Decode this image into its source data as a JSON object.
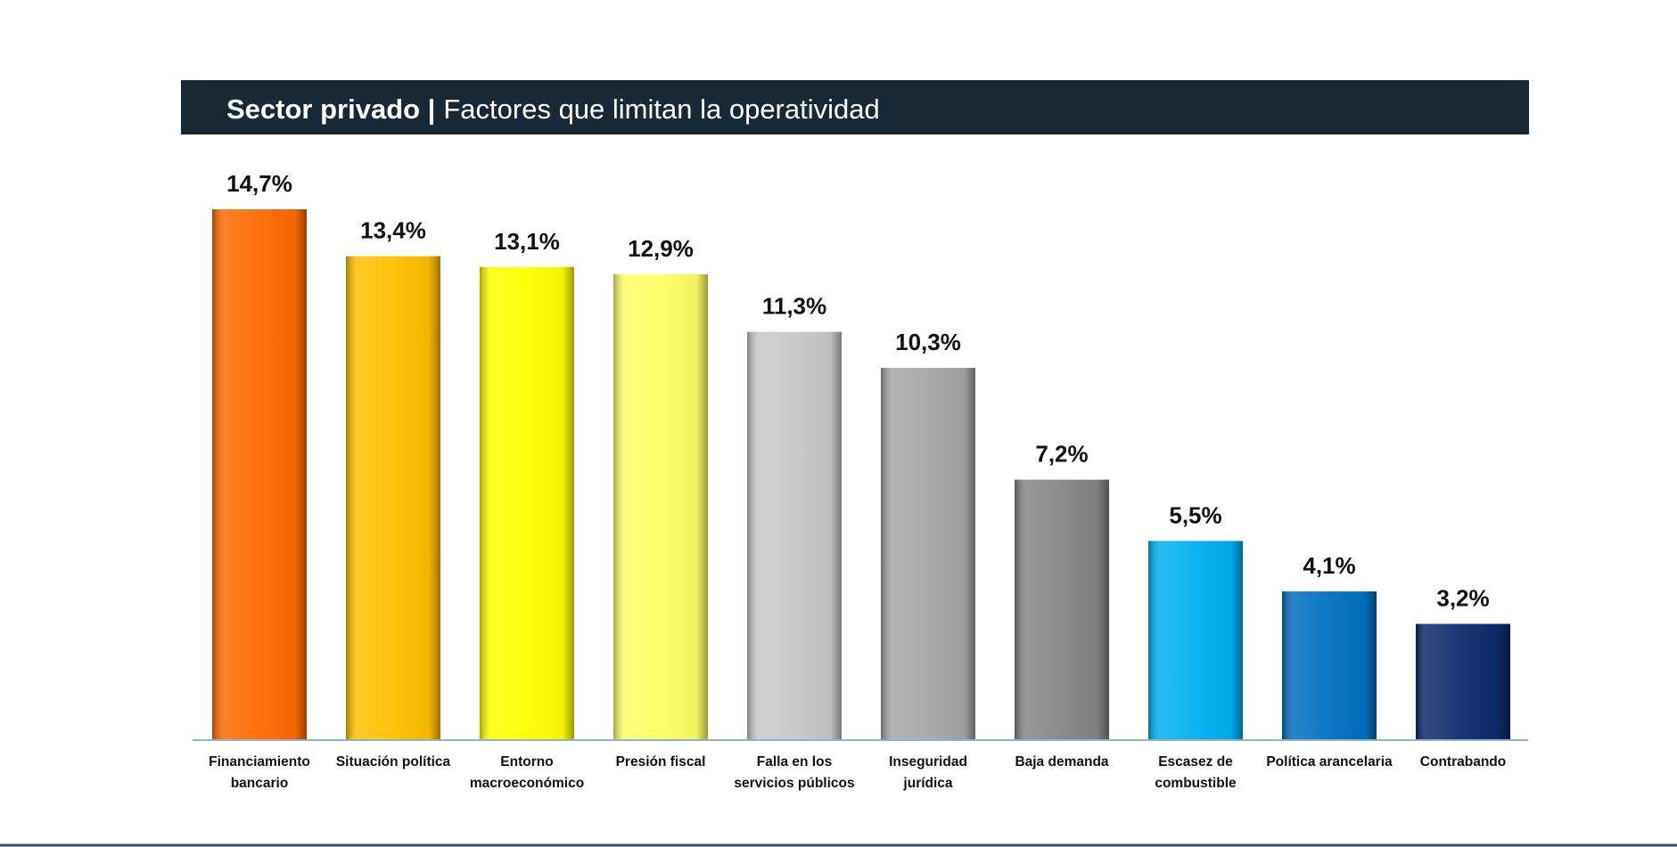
{
  "chart_data": {
    "type": "bar",
    "title": "Sector privado |",
    "subtitle": "Factores que limitan la operatividad",
    "categories": [
      "Financiamiento\nbancario",
      "Situación política",
      "Entorno\nmacroeconómico",
      "Presión fiscal",
      "Falla en los\nservicios públicos",
      "Inseguridad\njurídica",
      "Baja demanda",
      "Escasez de\ncombustible",
      "Política arancelaria",
      "Contrabando"
    ],
    "values": [
      14.7,
      13.4,
      13.1,
      12.9,
      11.3,
      10.3,
      7.2,
      5.5,
      4.1,
      3.2
    ],
    "value_labels": [
      "14,7%",
      "13,4%",
      "13,1%",
      "12,9%",
      "11,3%",
      "10,3%",
      "7,2%",
      "5,5%",
      "4,1%",
      "3,2%"
    ],
    "colors": [
      "#ff6a00",
      "#ffc000",
      "#ffff00",
      "#ffff66",
      "#c8c8c8",
      "#a6a6a6",
      "#858585",
      "#00b0f0",
      "#0070c0",
      "#0d2a6b"
    ]
  }
}
